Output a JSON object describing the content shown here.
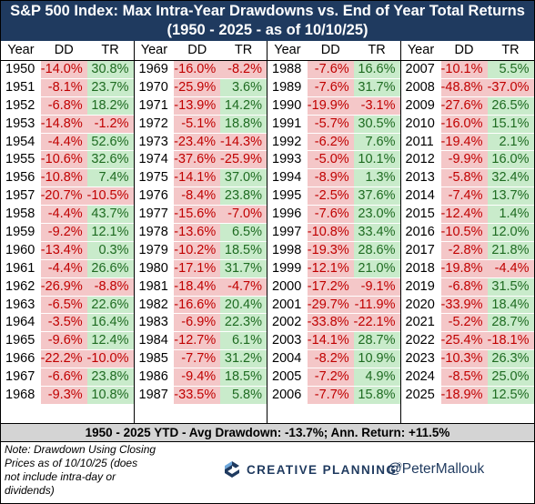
{
  "title_line1": "S&P 500 Index: Max Intra-Year Drawdowns vs. End of Year Total Returns",
  "title_line2": "(1950 - 2025 - as of 10/10/25)",
  "headers": {
    "year": "Year",
    "dd": "DD",
    "tr": "TR"
  },
  "summary": "1950 - 2025 YTD - Avg Drawdown: -13.7%; Ann. Return: +11.5%",
  "note_lines": [
    "Note: Drawdown Using Closing",
    "Prices as of 10/10/25 (does",
    "not include intra-day or",
    "dividends)"
  ],
  "brand": {
    "name": "CREATIVE PLANNING",
    "tm": "®",
    "handle": "@PeterMallouk",
    "colors": {
      "navy": "#1f3a5f",
      "light_blue": "#6fa8dc"
    }
  },
  "colors": {
    "negative_fill": "#f4c7c8",
    "negative_text": "#c00000",
    "positive_fill": "#c9ebcb",
    "positive_text": "#1e6b21",
    "header_bg": "#1f3a5f"
  },
  "chart_data": {
    "type": "table",
    "columns": [
      "Year",
      "DD",
      "TR"
    ],
    "rows": [
      [
        "1950",
        "-14.0%",
        "30.8%"
      ],
      [
        "1951",
        "-8.1%",
        "23.7%"
      ],
      [
        "1952",
        "-6.8%",
        "18.2%"
      ],
      [
        "1953",
        "-14.8%",
        "-1.2%"
      ],
      [
        "1954",
        "-4.4%",
        "52.6%"
      ],
      [
        "1955",
        "-10.6%",
        "32.6%"
      ],
      [
        "1956",
        "-10.8%",
        "7.4%"
      ],
      [
        "1957",
        "-20.7%",
        "-10.5%"
      ],
      [
        "1958",
        "-4.4%",
        "43.7%"
      ],
      [
        "1959",
        "-9.2%",
        "12.1%"
      ],
      [
        "1960",
        "-13.4%",
        "0.3%"
      ],
      [
        "1961",
        "-4.4%",
        "26.6%"
      ],
      [
        "1962",
        "-26.9%",
        "-8.8%"
      ],
      [
        "1963",
        "-6.5%",
        "22.6%"
      ],
      [
        "1964",
        "-3.5%",
        "16.4%"
      ],
      [
        "1965",
        "-9.6%",
        "12.4%"
      ],
      [
        "1966",
        "-22.2%",
        "-10.0%"
      ],
      [
        "1967",
        "-6.6%",
        "23.8%"
      ],
      [
        "1968",
        "-9.3%",
        "10.8%"
      ],
      [
        "1969",
        "-16.0%",
        "-8.2%"
      ],
      [
        "1970",
        "-25.9%",
        "3.6%"
      ],
      [
        "1971",
        "-13.9%",
        "14.2%"
      ],
      [
        "1972",
        "-5.1%",
        "18.8%"
      ],
      [
        "1973",
        "-23.4%",
        "-14.3%"
      ],
      [
        "1974",
        "-37.6%",
        "-25.9%"
      ],
      [
        "1975",
        "-14.1%",
        "37.0%"
      ],
      [
        "1976",
        "-8.4%",
        "23.8%"
      ],
      [
        "1977",
        "-15.6%",
        "-7.0%"
      ],
      [
        "1978",
        "-13.6%",
        "6.5%"
      ],
      [
        "1979",
        "-10.2%",
        "18.5%"
      ],
      [
        "1980",
        "-17.1%",
        "31.7%"
      ],
      [
        "1981",
        "-18.4%",
        "-4.7%"
      ],
      [
        "1982",
        "-16.6%",
        "20.4%"
      ],
      [
        "1983",
        "-6.9%",
        "22.3%"
      ],
      [
        "1984",
        "-12.7%",
        "6.1%"
      ],
      [
        "1985",
        "-7.7%",
        "31.2%"
      ],
      [
        "1986",
        "-9.4%",
        "18.5%"
      ],
      [
        "1987",
        "-33.5%",
        "5.8%"
      ],
      [
        "1988",
        "-7.6%",
        "16.6%"
      ],
      [
        "1989",
        "-7.6%",
        "31.7%"
      ],
      [
        "1990",
        "-19.9%",
        "-3.1%"
      ],
      [
        "1991",
        "-5.7%",
        "30.5%"
      ],
      [
        "1992",
        "-6.2%",
        "7.6%"
      ],
      [
        "1993",
        "-5.0%",
        "10.1%"
      ],
      [
        "1994",
        "-8.9%",
        "1.3%"
      ],
      [
        "1995",
        "-2.5%",
        "37.6%"
      ],
      [
        "1996",
        "-7.6%",
        "23.0%"
      ],
      [
        "1997",
        "-10.8%",
        "33.4%"
      ],
      [
        "1998",
        "-19.3%",
        "28.6%"
      ],
      [
        "1999",
        "-12.1%",
        "21.0%"
      ],
      [
        "2000",
        "-17.2%",
        "-9.1%"
      ],
      [
        "2001",
        "-29.7%",
        "-11.9%"
      ],
      [
        "2002",
        "-33.8%",
        "-22.1%"
      ],
      [
        "2003",
        "-14.1%",
        "28.7%"
      ],
      [
        "2004",
        "-8.2%",
        "10.9%"
      ],
      [
        "2005",
        "-7.2%",
        "4.9%"
      ],
      [
        "2006",
        "-7.7%",
        "15.8%"
      ],
      [
        "2007",
        "-10.1%",
        "5.5%"
      ],
      [
        "2008",
        "-48.8%",
        "-37.0%"
      ],
      [
        "2009",
        "-27.6%",
        "26.5%"
      ],
      [
        "2010",
        "-16.0%",
        "15.1%"
      ],
      [
        "2011",
        "-19.4%",
        "2.1%"
      ],
      [
        "2012",
        "-9.9%",
        "16.0%"
      ],
      [
        "2013",
        "-5.8%",
        "32.4%"
      ],
      [
        "2014",
        "-7.4%",
        "13.7%"
      ],
      [
        "2015",
        "-12.4%",
        "1.4%"
      ],
      [
        "2016",
        "-10.5%",
        "12.0%"
      ],
      [
        "2017",
        "-2.8%",
        "21.8%"
      ],
      [
        "2018",
        "-19.8%",
        "-4.4%"
      ],
      [
        "2019",
        "-6.8%",
        "31.5%"
      ],
      [
        "2020",
        "-33.9%",
        "18.4%"
      ],
      [
        "2021",
        "-5.2%",
        "28.7%"
      ],
      [
        "2022",
        "-25.4%",
        "-18.1%"
      ],
      [
        "2023",
        "-10.3%",
        "26.3%"
      ],
      [
        "2024",
        "-8.5%",
        "25.0%"
      ],
      [
        "2025",
        "-18.9%",
        "12.5%"
      ]
    ],
    "blocks": 4,
    "rows_per_block": 19
  }
}
